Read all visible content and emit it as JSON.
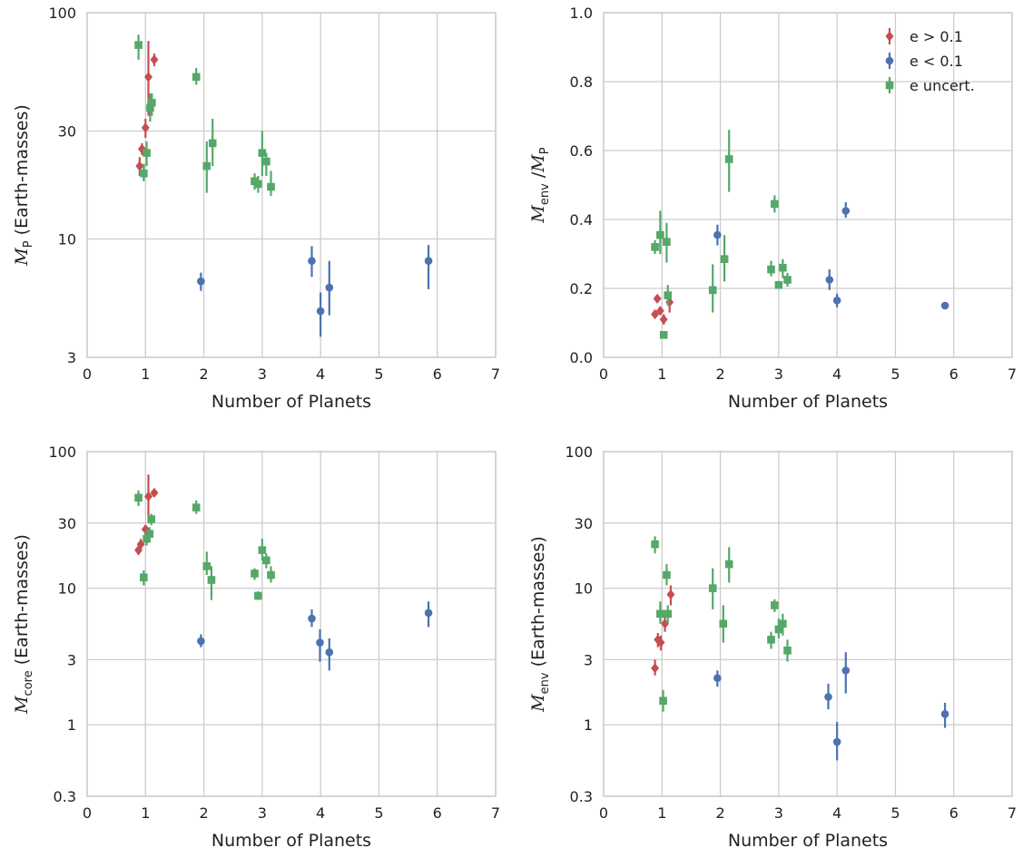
{
  "colors": {
    "e_gt": "#c44e52",
    "e_lt": "#4c72b0",
    "e_unc": "#55a868"
  },
  "legend": [
    {
      "label": "e > 0.1",
      "marker": "diamond",
      "color": "#c44e52"
    },
    {
      "label": "e < 0.1",
      "marker": "circle",
      "color": "#4c72b0"
    },
    {
      "label": "e uncert.",
      "marker": "square",
      "color": "#55a868"
    }
  ],
  "chart_data": [
    {
      "type": "scatter",
      "xlabel": "Number of Planets",
      "ylabel": {
        "sym": "M",
        "sub": "P",
        "rest": " (Earth-masses)"
      },
      "yscale": "log",
      "xlim": [
        0,
        7
      ],
      "ylim": [
        3,
        100
      ],
      "xticks": [
        "0",
        "1",
        "2",
        "3",
        "4",
        "5",
        "6",
        "7"
      ],
      "yticks": [
        {
          "v": 3,
          "label": "3"
        },
        {
          "v": 10,
          "label": "10"
        },
        {
          "v": 30,
          "label": "30"
        },
        {
          "v": 100,
          "label": "100"
        }
      ],
      "series": [
        {
          "key": "e_gt",
          "marker": "diamond",
          "points": [
            {
              "x": 0.9,
              "y": 21,
              "lo": 19,
              "hi": 23
            },
            {
              "x": 0.94,
              "y": 25,
              "lo": 23.5,
              "hi": 26.5
            },
            {
              "x": 1.0,
              "y": 31,
              "lo": 28,
              "hi": 34
            },
            {
              "x": 1.05,
              "y": 52,
              "lo": 35,
              "hi": 75
            },
            {
              "x": 1.15,
              "y": 62,
              "lo": 58,
              "hi": 66
            }
          ]
        },
        {
          "key": "e_lt",
          "marker": "circle",
          "points": [
            {
              "x": 1.95,
              "y": 6.5,
              "lo": 5.9,
              "hi": 7.1
            },
            {
              "x": 3.85,
              "y": 8.0,
              "lo": 6.8,
              "hi": 9.3
            },
            {
              "x": 4.0,
              "y": 4.8,
              "lo": 3.7,
              "hi": 5.8
            },
            {
              "x": 4.15,
              "y": 6.1,
              "lo": 4.6,
              "hi": 8.0
            },
            {
              "x": 5.85,
              "y": 8.0,
              "lo": 6.0,
              "hi": 9.4
            }
          ]
        },
        {
          "key": "e_unc",
          "marker": "square",
          "points": [
            {
              "x": 0.88,
              "y": 72,
              "lo": 62,
              "hi": 80
            },
            {
              "x": 0.97,
              "y": 19.5,
              "lo": 18,
              "hi": 21.5
            },
            {
              "x": 1.02,
              "y": 24,
              "lo": 21,
              "hi": 27
            },
            {
              "x": 1.08,
              "y": 38,
              "lo": 33,
              "hi": 44
            },
            {
              "x": 1.11,
              "y": 40,
              "lo": 35,
              "hi": 44
            },
            {
              "x": 1.87,
              "y": 52,
              "lo": 48,
              "hi": 57
            },
            {
              "x": 2.05,
              "y": 21,
              "lo": 16,
              "hi": 27
            },
            {
              "x": 2.15,
              "y": 26.5,
              "lo": 21,
              "hi": 34
            },
            {
              "x": 2.87,
              "y": 18,
              "lo": 16.5,
              "hi": 19.5
            },
            {
              "x": 2.93,
              "y": 17.5,
              "lo": 16,
              "hi": 19
            },
            {
              "x": 3.0,
              "y": 24,
              "lo": 19,
              "hi": 30
            },
            {
              "x": 3.07,
              "y": 22,
              "lo": 19,
              "hi": 24
            },
            {
              "x": 3.15,
              "y": 17,
              "lo": 15.5,
              "hi": 20
            }
          ]
        }
      ]
    },
    {
      "type": "scatter",
      "xlabel": "Number of Planets",
      "ylabel": {
        "sym": "M",
        "sub": "env",
        "rest": " /",
        "sym2": "M",
        "sub2": "P"
      },
      "yscale": "linear",
      "xlim": [
        0,
        7
      ],
      "ylim": [
        0,
        1.0
      ],
      "xticks": [
        "0",
        "1",
        "2",
        "3",
        "4",
        "5",
        "6",
        "7"
      ],
      "yticks": [
        {
          "v": 0,
          "label": "0.0"
        },
        {
          "v": 0.2,
          "label": "0.2"
        },
        {
          "v": 0.4,
          "label": "0.4"
        },
        {
          "v": 0.6,
          "label": "0.6"
        },
        {
          "v": 0.8,
          "label": "0.8"
        },
        {
          "v": 1.0,
          "label": "1.0"
        }
      ],
      "series": [
        {
          "key": "e_gt",
          "marker": "diamond",
          "points": [
            {
              "x": 0.88,
              "y": 0.125,
              "lo": 0.115,
              "hi": 0.135
            },
            {
              "x": 0.92,
              "y": 0.17,
              "lo": 0.16,
              "hi": 0.18
            },
            {
              "x": 0.97,
              "y": 0.135,
              "lo": 0.125,
              "hi": 0.145
            },
            {
              "x": 1.03,
              "y": 0.11,
              "lo": 0.095,
              "hi": 0.125
            },
            {
              "x": 1.13,
              "y": 0.16,
              "lo": 0.13,
              "hi": 0.19
            }
          ]
        },
        {
          "key": "e_lt",
          "marker": "circle",
          "points": [
            {
              "x": 1.95,
              "y": 0.355,
              "lo": 0.325,
              "hi": 0.385
            },
            {
              "x": 3.87,
              "y": 0.225,
              "lo": 0.195,
              "hi": 0.255
            },
            {
              "x": 4.0,
              "y": 0.165,
              "lo": 0.145,
              "hi": 0.185
            },
            {
              "x": 4.15,
              "y": 0.425,
              "lo": 0.405,
              "hi": 0.45
            },
            {
              "x": 5.85,
              "y": 0.15,
              "lo": 0.145,
              "hi": 0.155
            }
          ]
        },
        {
          "key": "e_unc",
          "marker": "square",
          "points": [
            {
              "x": 0.88,
              "y": 0.32,
              "lo": 0.3,
              "hi": 0.34
            },
            {
              "x": 0.97,
              "y": 0.355,
              "lo": 0.3,
              "hi": 0.425
            },
            {
              "x": 1.03,
              "y": 0.065,
              "lo": 0.055,
              "hi": 0.075
            },
            {
              "x": 1.08,
              "y": 0.335,
              "lo": 0.275,
              "hi": 0.39
            },
            {
              "x": 1.1,
              "y": 0.18,
              "lo": 0.15,
              "hi": 0.21
            },
            {
              "x": 1.87,
              "y": 0.195,
              "lo": 0.13,
              "hi": 0.27
            },
            {
              "x": 2.07,
              "y": 0.285,
              "lo": 0.22,
              "hi": 0.355
            },
            {
              "x": 2.15,
              "y": 0.575,
              "lo": 0.48,
              "hi": 0.66
            },
            {
              "x": 2.87,
              "y": 0.255,
              "lo": 0.235,
              "hi": 0.28
            },
            {
              "x": 2.93,
              "y": 0.445,
              "lo": 0.42,
              "hi": 0.47
            },
            {
              "x": 3.0,
              "y": 0.21,
              "lo": 0.205,
              "hi": 0.215
            },
            {
              "x": 3.07,
              "y": 0.26,
              "lo": 0.23,
              "hi": 0.285
            },
            {
              "x": 3.15,
              "y": 0.225,
              "lo": 0.205,
              "hi": 0.245
            }
          ]
        }
      ]
    },
    {
      "type": "scatter",
      "xlabel": "Number of Planets",
      "ylabel": {
        "sym": "M",
        "sub": "core",
        "rest": " (Earth-masses)"
      },
      "yscale": "log",
      "xlim": [
        0,
        7
      ],
      "ylim": [
        0.3,
        100
      ],
      "xticks": [
        "0",
        "1",
        "2",
        "3",
        "4",
        "5",
        "6",
        "7"
      ],
      "yticks": [
        {
          "v": 0.3,
          "label": "0.3"
        },
        {
          "v": 1,
          "label": "1"
        },
        {
          "v": 3,
          "label": "3"
        },
        {
          "v": 10,
          "label": "10"
        },
        {
          "v": 30,
          "label": "30"
        },
        {
          "v": 100,
          "label": "100"
        }
      ],
      "series": [
        {
          "key": "e_gt",
          "marker": "diamond",
          "points": [
            {
              "x": 0.88,
              "y": 19,
              "lo": 17.5,
              "hi": 21
            },
            {
              "x": 0.92,
              "y": 21,
              "lo": 19.5,
              "hi": 23
            },
            {
              "x": 1.0,
              "y": 27,
              "lo": 24.5,
              "hi": 29
            },
            {
              "x": 1.05,
              "y": 47,
              "lo": 34,
              "hi": 68
            },
            {
              "x": 1.15,
              "y": 50,
              "lo": 47,
              "hi": 53
            }
          ]
        },
        {
          "key": "e_lt",
          "marker": "circle",
          "points": [
            {
              "x": 1.95,
              "y": 4.1,
              "lo": 3.7,
              "hi": 4.6
            },
            {
              "x": 3.85,
              "y": 6.0,
              "lo": 5.2,
              "hi": 7.0
            },
            {
              "x": 3.99,
              "y": 4.0,
              "lo": 2.9,
              "hi": 5.0
            },
            {
              "x": 4.15,
              "y": 3.4,
              "lo": 2.5,
              "hi": 4.3
            },
            {
              "x": 5.85,
              "y": 6.6,
              "lo": 5.2,
              "hi": 8.0
            }
          ]
        },
        {
          "key": "e_unc",
          "marker": "square",
          "points": [
            {
              "x": 0.88,
              "y": 46,
              "lo": 40,
              "hi": 52
            },
            {
              "x": 0.97,
              "y": 12,
              "lo": 10.5,
              "hi": 13.5
            },
            {
              "x": 1.02,
              "y": 23,
              "lo": 20.5,
              "hi": 26
            },
            {
              "x": 1.07,
              "y": 25,
              "lo": 22.5,
              "hi": 28
            },
            {
              "x": 1.1,
              "y": 32,
              "lo": 29,
              "hi": 35
            },
            {
              "x": 1.87,
              "y": 39,
              "lo": 35,
              "hi": 44
            },
            {
              "x": 2.05,
              "y": 14.5,
              "lo": 12.5,
              "hi": 18.5
            },
            {
              "x": 2.13,
              "y": 11.5,
              "lo": 8.2,
              "hi": 14.5
            },
            {
              "x": 2.87,
              "y": 12.8,
              "lo": 11.5,
              "hi": 14
            },
            {
              "x": 2.93,
              "y": 8.8,
              "lo": 8.2,
              "hi": 9.5
            },
            {
              "x": 3.0,
              "y": 19,
              "lo": 16,
              "hi": 23
            },
            {
              "x": 3.07,
              "y": 16,
              "lo": 14,
              "hi": 18
            },
            {
              "x": 3.15,
              "y": 12.5,
              "lo": 11,
              "hi": 14.5
            }
          ]
        }
      ]
    },
    {
      "type": "scatter",
      "xlabel": "Number of Planets",
      "ylabel": {
        "sym": "M",
        "sub": "env",
        "rest": " (Earth-masses)"
      },
      "yscale": "log",
      "xlim": [
        0,
        7
      ],
      "ylim": [
        0.3,
        100
      ],
      "xticks": [
        "0",
        "1",
        "2",
        "3",
        "4",
        "5",
        "6",
        "7"
      ],
      "yticks": [
        {
          "v": 0.3,
          "label": "0.3"
        },
        {
          "v": 1,
          "label": "1"
        },
        {
          "v": 3,
          "label": "3"
        },
        {
          "v": 10,
          "label": "10"
        },
        {
          "v": 30,
          "label": "30"
        },
        {
          "v": 100,
          "label": "100"
        }
      ],
      "series": [
        {
          "key": "e_gt",
          "marker": "diamond",
          "points": [
            {
              "x": 0.88,
              "y": 2.6,
              "lo": 2.3,
              "hi": 3.0
            },
            {
              "x": 0.93,
              "y": 4.2,
              "lo": 3.7,
              "hi": 4.7
            },
            {
              "x": 0.98,
              "y": 4.0,
              "lo": 3.5,
              "hi": 4.5
            },
            {
              "x": 1.05,
              "y": 5.5,
              "lo": 4.8,
              "hi": 6.3
            },
            {
              "x": 1.15,
              "y": 9.0,
              "lo": 7.5,
              "hi": 10.5
            }
          ]
        },
        {
          "key": "e_lt",
          "marker": "circle",
          "points": [
            {
              "x": 1.95,
              "y": 2.2,
              "lo": 1.9,
              "hi": 2.5
            },
            {
              "x": 3.85,
              "y": 1.6,
              "lo": 1.3,
              "hi": 2.0
            },
            {
              "x": 4.0,
              "y": 0.75,
              "lo": 0.55,
              "hi": 1.05
            },
            {
              "x": 4.15,
              "y": 2.5,
              "lo": 1.7,
              "hi": 3.4
            },
            {
              "x": 5.85,
              "y": 1.2,
              "lo": 0.95,
              "hi": 1.45
            }
          ]
        },
        {
          "key": "e_unc",
          "marker": "square",
          "points": [
            {
              "x": 0.88,
              "y": 21,
              "lo": 18,
              "hi": 24
            },
            {
              "x": 0.97,
              "y": 6.5,
              "lo": 5.5,
              "hi": 8.0
            },
            {
              "x": 1.02,
              "y": 1.5,
              "lo": 1.25,
              "hi": 1.8
            },
            {
              "x": 1.08,
              "y": 12.5,
              "lo": 10.5,
              "hi": 15
            },
            {
              "x": 1.1,
              "y": 6.5,
              "lo": 5.5,
              "hi": 7.5
            },
            {
              "x": 1.87,
              "y": 10,
              "lo": 7,
              "hi": 14
            },
            {
              "x": 2.05,
              "y": 5.5,
              "lo": 4.0,
              "hi": 7.5
            },
            {
              "x": 2.15,
              "y": 15,
              "lo": 11,
              "hi": 20
            },
            {
              "x": 2.87,
              "y": 4.2,
              "lo": 3.6,
              "hi": 4.8
            },
            {
              "x": 2.93,
              "y": 7.5,
              "lo": 6.7,
              "hi": 8.3
            },
            {
              "x": 3.0,
              "y": 5.0,
              "lo": 4.3,
              "hi": 6.0
            },
            {
              "x": 3.07,
              "y": 5.5,
              "lo": 4.5,
              "hi": 6.5
            },
            {
              "x": 3.15,
              "y": 3.5,
              "lo": 2.9,
              "hi": 4.2
            }
          ]
        }
      ]
    }
  ]
}
